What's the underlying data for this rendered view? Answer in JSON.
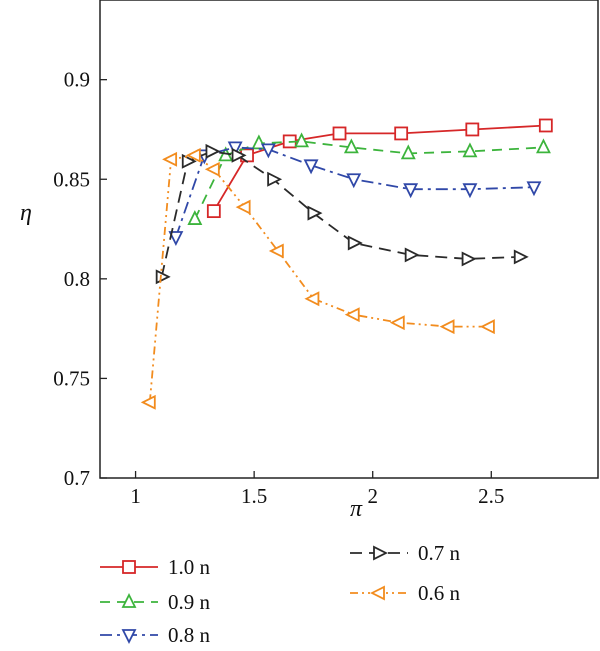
{
  "chart_data": {
    "type": "line",
    "title": "",
    "xlabel": "π",
    "ylabel": "η",
    "xlim": [
      0.85,
      2.95
    ],
    "ylim": [
      0.7,
      0.94
    ],
    "x_ticks": [
      1,
      1.5,
      2,
      2.5
    ],
    "x_tick_labels": [
      "1",
      "1.5",
      "2",
      "2.5"
    ],
    "y_ticks": [
      0.7,
      0.75,
      0.8,
      0.85,
      0.9
    ],
    "y_tick_labels": [
      "0.7",
      "0.75",
      "0.8",
      "0.85",
      "0.9"
    ],
    "grid": false,
    "legend_position": "below",
    "series": [
      {
        "name": "1.0 n",
        "color": "#d62728",
        "marker": "square",
        "dash": "",
        "points": [
          [
            1.33,
            0.834
          ],
          [
            1.47,
            0.862
          ],
          [
            1.65,
            0.869
          ],
          [
            1.86,
            0.873
          ],
          [
            2.12,
            0.873
          ],
          [
            2.42,
            0.875
          ],
          [
            2.73,
            0.877
          ]
        ]
      },
      {
        "name": "0.9 n",
        "color": "#3cb43c",
        "marker": "triangle-up",
        "dash": "10,7",
        "points": [
          [
            1.25,
            0.83
          ],
          [
            1.38,
            0.862
          ],
          [
            1.52,
            0.868
          ],
          [
            1.7,
            0.869
          ],
          [
            1.91,
            0.866
          ],
          [
            2.15,
            0.863
          ],
          [
            2.41,
            0.864
          ],
          [
            2.72,
            0.866
          ]
        ]
      },
      {
        "name": "0.8 n",
        "color": "#3048a8",
        "marker": "triangle-down",
        "dash": "12,5,3,5",
        "points": [
          [
            1.17,
            0.821
          ],
          [
            1.29,
            0.862
          ],
          [
            1.42,
            0.866
          ],
          [
            1.56,
            0.865
          ],
          [
            1.74,
            0.857
          ],
          [
            1.92,
            0.85
          ],
          [
            2.16,
            0.845
          ],
          [
            2.41,
            0.845
          ],
          [
            2.68,
            0.846
          ]
        ]
      },
      {
        "name": "0.7 n",
        "color": "#2a2a2a",
        "marker": "triangle-right",
        "dash": "12,7",
        "points": [
          [
            1.11,
            0.801
          ],
          [
            1.22,
            0.859
          ],
          [
            1.32,
            0.864
          ],
          [
            1.43,
            0.862
          ],
          [
            1.58,
            0.85
          ],
          [
            1.75,
            0.833
          ],
          [
            1.92,
            0.818
          ],
          [
            2.16,
            0.812
          ],
          [
            2.4,
            0.81
          ],
          [
            2.62,
            0.811
          ]
        ]
      },
      {
        "name": "0.6 n",
        "color": "#f28c1e",
        "marker": "triangle-left",
        "dash": "8,4,2,4,2,4",
        "points": [
          [
            1.06,
            0.738
          ],
          [
            1.15,
            0.86
          ],
          [
            1.25,
            0.862
          ],
          [
            1.33,
            0.855
          ],
          [
            1.46,
            0.836
          ],
          [
            1.6,
            0.814
          ],
          [
            1.75,
            0.79
          ],
          [
            1.92,
            0.782
          ],
          [
            2.11,
            0.778
          ],
          [
            2.32,
            0.776
          ],
          [
            2.49,
            0.776
          ]
        ]
      }
    ]
  }
}
